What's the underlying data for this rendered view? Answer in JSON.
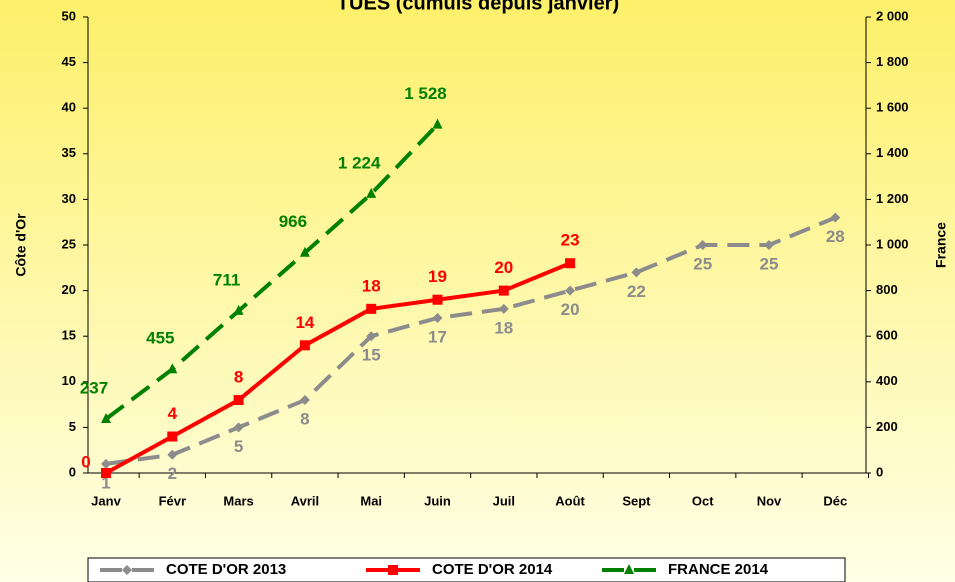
{
  "chart_data": {
    "type": "line",
    "title": "TUES (cumuls depuis janvier)",
    "y_label": "Côte d'Or",
    "y2_label": "France",
    "categories": [
      "Janv",
      "Févr",
      "Mars",
      "Avril",
      "Mai",
      "Juin",
      "Juil",
      "Août",
      "Sept",
      "Oct",
      "Nov",
      "Déc"
    ],
    "ylim": [
      0,
      50
    ],
    "yticks": [
      0,
      5,
      10,
      15,
      20,
      25,
      30,
      35,
      40,
      45,
      50
    ],
    "y2lim": [
      0,
      2000
    ],
    "y2ticks": [
      0,
      200,
      400,
      600,
      800,
      {
        "value": 1000,
        "label": "1 000"
      },
      {
        "value": 1200,
        "label": "1 200"
      },
      {
        "value": 1400,
        "label": "1 400"
      },
      {
        "value": 1600,
        "label": "1 600"
      },
      {
        "value": 1800,
        "label": "1 800"
      },
      {
        "value": 2000,
        "label": "2 000"
      }
    ],
    "series": [
      {
        "name": "COTE D'OR 2013",
        "color": "#8c8c8c",
        "dash": true,
        "marker": "diamond",
        "values": [
          1,
          2,
          5,
          8,
          15,
          17,
          18,
          20,
          22,
          25,
          25,
          28
        ]
      },
      {
        "name": "COTE D'OR 2014",
        "color": "#ff0000",
        "dash": false,
        "marker": "square",
        "values": [
          0,
          4,
          8,
          14,
          18,
          19,
          20,
          23,
          null,
          null,
          null,
          null
        ]
      },
      {
        "name": "FRANCE 2014",
        "color": "#008000",
        "dash": true,
        "marker": "triangle",
        "axis": "y2",
        "values": [
          237,
          455,
          711,
          966,
          1224,
          1528,
          null,
          null,
          null,
          null,
          null,
          null
        ],
        "value_labels": [
          "237",
          "455",
          "711",
          "966",
          "1 224",
          "1 528",
          null,
          null,
          null,
          null,
          null,
          null
        ]
      }
    ]
  }
}
